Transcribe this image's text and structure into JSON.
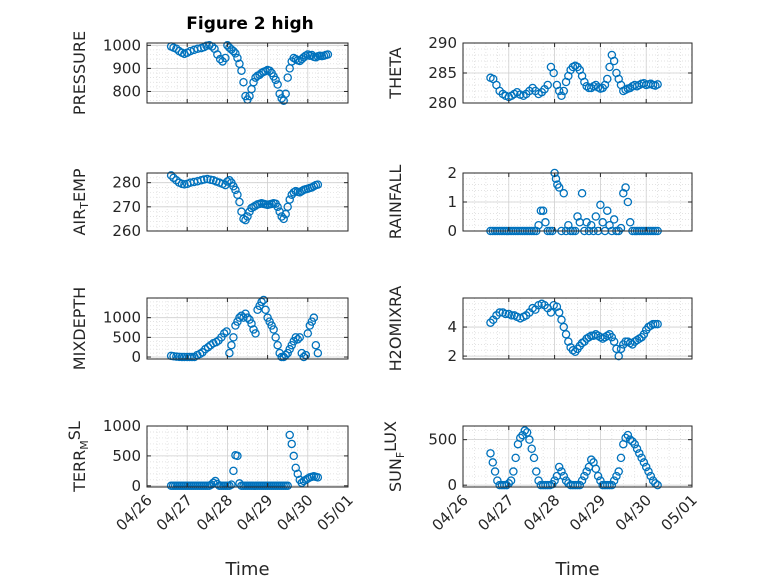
{
  "figure": {
    "title": "Figure 2 high"
  },
  "colors": {
    "marker": "#0072BD",
    "axis": "#262626",
    "grid": "#d9d9d9"
  },
  "x_axis": {
    "label": "Time",
    "ticks": [
      "04/26",
      "04/27",
      "04/28",
      "04/29",
      "04/30",
      "05/01"
    ],
    "xlim": [
      0,
      5
    ],
    "unit": "days since 04/26"
  },
  "chart_data": [
    {
      "type": "scatter",
      "ylabel": "PRESSURE",
      "ylim": [
        750,
        1010
      ],
      "yticks": [
        {
          "v": 1000,
          "t": "1000"
        },
        {
          "v": 900,
          "t": "900"
        },
        {
          "v": 800,
          "t": "800"
        }
      ],
      "title": "Figure 2 high",
      "x": [
        0.6,
        0.66,
        0.73,
        0.8,
        0.87,
        0.93,
        1.0,
        1.08,
        1.17,
        1.26,
        1.35,
        1.42,
        1.48,
        1.55,
        1.62,
        1.68,
        1.75,
        1.82,
        1.88,
        1.95,
        2.0,
        2.05,
        2.1,
        2.15,
        2.2,
        2.25,
        2.3,
        2.35,
        2.4,
        2.45,
        2.5,
        2.55,
        2.6,
        2.65,
        2.7,
        2.75,
        2.8,
        2.85,
        2.9,
        2.95,
        3.0,
        3.05,
        3.1,
        3.15,
        3.2,
        3.25,
        3.3,
        3.35,
        3.4,
        3.45,
        3.5,
        3.55,
        3.6,
        3.65,
        3.7,
        3.75,
        3.8,
        3.85,
        3.9,
        3.95,
        4.0,
        4.05,
        4.1,
        4.15,
        4.2,
        4.25,
        4.3,
        4.35,
        4.4,
        4.45,
        4.5
      ],
      "y": [
        995,
        990,
        985,
        975,
        968,
        963,
        968,
        975,
        980,
        985,
        988,
        992,
        998,
        1000,
        995,
        985,
        960,
        940,
        930,
        945,
        1000,
        990,
        982,
        975,
        965,
        945,
        920,
        890,
        840,
        780,
        765,
        780,
        810,
        840,
        860,
        868,
        872,
        880,
        885,
        888,
        893,
        890,
        880,
        865,
        850,
        830,
        790,
        770,
        760,
        790,
        860,
        900,
        930,
        945,
        940,
        935,
        932,
        940,
        948,
        955,
        960,
        955,
        958,
        950,
        948,
        952,
        955,
        953,
        955,
        958,
        960
      ],
      "ylabel_text": "PRESSURE"
    },
    {
      "type": "scatter",
      "ylabel": "THETA",
      "ylim": [
        280,
        290
      ],
      "yticks": [
        {
          "v": 290,
          "t": "290"
        },
        {
          "v": 285,
          "t": "285"
        },
        {
          "v": 280,
          "t": "280"
        }
      ],
      "x": [
        0.6,
        0.66,
        0.73,
        0.8,
        0.87,
        0.93,
        1.0,
        1.06,
        1.12,
        1.18,
        1.25,
        1.32,
        1.38,
        1.45,
        1.52,
        1.58,
        1.65,
        1.72,
        1.78,
        1.85,
        1.92,
        1.98,
        2.05,
        2.1,
        2.15,
        2.2,
        2.25,
        2.3,
        2.35,
        2.4,
        2.45,
        2.5,
        2.55,
        2.6,
        2.65,
        2.7,
        2.75,
        2.8,
        2.85,
        2.9,
        2.95,
        3.0,
        3.05,
        3.1,
        3.15,
        3.2,
        3.25,
        3.3,
        3.35,
        3.4,
        3.45,
        3.5,
        3.55,
        3.6,
        3.65,
        3.7,
        3.75,
        3.8,
        3.85,
        3.9,
        3.95,
        4.0,
        4.05,
        4.1,
        4.15,
        4.2,
        4.25
      ],
      "y": [
        284.2,
        284,
        283,
        282,
        281.5,
        281.2,
        281,
        281.2,
        281.5,
        281.8,
        281.4,
        281.2,
        281.5,
        282,
        282.5,
        282,
        281.5,
        281.8,
        282.3,
        283,
        286,
        285,
        283,
        282,
        281.2,
        282,
        283.5,
        284.5,
        285.5,
        286,
        286.2,
        286,
        285.5,
        284.5,
        283.5,
        282.8,
        282.5,
        282.5,
        282.8,
        283,
        282.6,
        282.4,
        282.5,
        283,
        284,
        286,
        288,
        287,
        285,
        284,
        283,
        282,
        282.2,
        282.4,
        282.5,
        282.8,
        283,
        282.8,
        283,
        283.2,
        283.3,
        283,
        283.1,
        283.2,
        283,
        282.9,
        283.1
      ],
      "ylabel_text": "THETA"
    },
    {
      "type": "scatter",
      "ylabel": "AIR_TEMP",
      "ylim": [
        260,
        284
      ],
      "yticks": [
        {
          "v": 280,
          "t": "280"
        },
        {
          "v": 270,
          "t": "270"
        },
        {
          "v": 260,
          "t": "260"
        }
      ],
      "x": [
        0.6,
        0.66,
        0.73,
        0.8,
        0.87,
        0.93,
        1.0,
        1.08,
        1.17,
        1.26,
        1.35,
        1.42,
        1.5,
        1.58,
        1.65,
        1.72,
        1.8,
        1.88,
        1.95,
        2.0,
        2.05,
        2.1,
        2.15,
        2.2,
        2.25,
        2.3,
        2.35,
        2.4,
        2.45,
        2.5,
        2.55,
        2.6,
        2.65,
        2.7,
        2.75,
        2.8,
        2.85,
        2.9,
        2.95,
        3.0,
        3.05,
        3.1,
        3.15,
        3.2,
        3.25,
        3.3,
        3.35,
        3.4,
        3.45,
        3.5,
        3.55,
        3.6,
        3.65,
        3.7,
        3.75,
        3.8,
        3.85,
        3.9,
        3.95,
        4.0,
        4.05,
        4.1,
        4.15,
        4.2,
        4.25
      ],
      "y": [
        283,
        282,
        281,
        280,
        279.5,
        279.3,
        279.5,
        280,
        280.3,
        280.6,
        281,
        281.3,
        281.5,
        281.2,
        281,
        280.5,
        280,
        279.5,
        279,
        280.5,
        281,
        280,
        278.5,
        277,
        275,
        272,
        268,
        265,
        264.5,
        266,
        268,
        269.5,
        270,
        270.5,
        271,
        271.2,
        271.5,
        271.2,
        271,
        270.8,
        271,
        271.2,
        271.5,
        271.3,
        270,
        268,
        266,
        265,
        267,
        270,
        273,
        275,
        276,
        276.5,
        276.2,
        276,
        276.5,
        277,
        277.3,
        277.5,
        277.8,
        278,
        278.5,
        279,
        279.2
      ],
      "ylabel_text": "AIR_TEMP"
    },
    {
      "type": "scatter",
      "ylabel": "RAINFALL",
      "ylim": [
        0,
        2
      ],
      "yticks": [
        {
          "v": 2,
          "t": "2"
        },
        {
          "v": 1,
          "t": "1"
        },
        {
          "v": 0,
          "t": "0"
        }
      ],
      "x": [
        0.6,
        0.65,
        0.7,
        0.75,
        0.8,
        0.85,
        0.9,
        0.95,
        1.0,
        1.05,
        1.1,
        1.15,
        1.2,
        1.25,
        1.3,
        1.35,
        1.4,
        1.45,
        1.5,
        1.55,
        1.6,
        1.65,
        1.7,
        1.75,
        1.8,
        1.85,
        1.9,
        1.95,
        2.0,
        2.03,
        2.06,
        2.1,
        2.15,
        2.2,
        2.25,
        2.3,
        2.35,
        2.4,
        2.45,
        2.5,
        2.55,
        2.6,
        2.65,
        2.7,
        2.75,
        2.8,
        2.85,
        2.9,
        2.95,
        3.0,
        3.05,
        3.1,
        3.15,
        3.2,
        3.25,
        3.3,
        3.35,
        3.4,
        3.45,
        3.5,
        3.55,
        3.6,
        3.65,
        3.7,
        3.75,
        3.8,
        3.85,
        3.9,
        3.95,
        4.0,
        4.05,
        4.1,
        4.15,
        4.2,
        4.25
      ],
      "y": [
        0,
        0,
        0,
        0,
        0,
        0,
        0,
        0,
        0,
        0,
        0,
        0,
        0,
        0,
        0,
        0,
        0,
        0,
        0,
        0,
        0,
        0.2,
        0.7,
        0.7,
        0.3,
        0,
        0,
        0,
        2.0,
        1.8,
        1.6,
        1.5,
        0,
        1.3,
        0,
        0.2,
        0,
        0,
        0,
        0.5,
        0.3,
        1.3,
        0,
        0.3,
        0,
        0.2,
        0,
        0.5,
        0,
        0.9,
        0.3,
        0,
        0.7,
        0.2,
        0,
        0.4,
        0,
        0,
        0.1,
        1.3,
        1.5,
        1.0,
        0.3,
        0,
        0,
        0,
        0,
        0,
        0,
        0,
        0,
        0,
        0,
        0,
        0
      ],
      "ylabel_text": "RAINFALL"
    },
    {
      "type": "scatter",
      "ylabel": "MIXDEPTH",
      "ylim": [
        -50,
        1500
      ],
      "yticks": [
        {
          "v": 1000,
          "t": "1000"
        },
        {
          "v": 500,
          "t": "500"
        },
        {
          "v": 0,
          "t": "0"
        }
      ],
      "x": [
        0.6,
        0.66,
        0.73,
        0.8,
        0.87,
        0.93,
        1.0,
        1.06,
        1.12,
        1.18,
        1.25,
        1.32,
        1.38,
        1.45,
        1.52,
        1.58,
        1.65,
        1.72,
        1.78,
        1.85,
        1.92,
        1.98,
        2.05,
        2.1,
        2.15,
        2.2,
        2.25,
        2.3,
        2.35,
        2.4,
        2.45,
        2.5,
        2.55,
        2.6,
        2.65,
        2.7,
        2.75,
        2.8,
        2.85,
        2.9,
        2.95,
        3.0,
        3.05,
        3.1,
        3.15,
        3.2,
        3.25,
        3.3,
        3.35,
        3.4,
        3.45,
        3.5,
        3.55,
        3.6,
        3.65,
        3.7,
        3.75,
        3.8,
        3.85,
        3.9,
        3.95,
        4.0,
        4.05,
        4.1,
        4.15,
        4.2,
        4.25
      ],
      "y": [
        30,
        20,
        10,
        5,
        0,
        0,
        0,
        0,
        0,
        0,
        50,
        80,
        120,
        200,
        250,
        300,
        350,
        380,
        420,
        500,
        600,
        650,
        100,
        300,
        500,
        800,
        900,
        1000,
        1050,
        1000,
        1100,
        1000,
        950,
        850,
        700,
        600,
        1200,
        1300,
        1400,
        1450,
        1200,
        1000,
        900,
        800,
        700,
        500,
        300,
        100,
        0,
        0,
        50,
        100,
        200,
        300,
        400,
        500,
        450,
        500,
        100,
        0,
        50,
        600,
        800,
        900,
        1000,
        300,
        100
      ],
      "ylabel_text": "MIXDEPTH"
    },
    {
      "type": "scatter",
      "ylabel": "H2OMIXRA",
      "ylim": [
        1.8,
        6
      ],
      "yticks": [
        {
          "v": 4,
          "t": "4"
        },
        {
          "v": 2,
          "t": "2"
        }
      ],
      "x": [
        0.6,
        0.66,
        0.73,
        0.8,
        0.87,
        0.93,
        1.0,
        1.06,
        1.12,
        1.18,
        1.25,
        1.32,
        1.38,
        1.45,
        1.52,
        1.58,
        1.65,
        1.72,
        1.78,
        1.85,
        1.92,
        1.98,
        2.05,
        2.1,
        2.15,
        2.2,
        2.25,
        2.3,
        2.35,
        2.4,
        2.45,
        2.5,
        2.55,
        2.6,
        2.65,
        2.7,
        2.75,
        2.8,
        2.85,
        2.9,
        2.95,
        3.0,
        3.05,
        3.1,
        3.15,
        3.2,
        3.25,
        3.3,
        3.35,
        3.4,
        3.45,
        3.5,
        3.55,
        3.6,
        3.65,
        3.7,
        3.75,
        3.8,
        3.85,
        3.9,
        3.95,
        4.0,
        4.05,
        4.1,
        4.15,
        4.2,
        4.25
      ],
      "y": [
        4.3,
        4.5,
        4.8,
        5.0,
        5.0,
        4.9,
        4.9,
        4.8,
        4.8,
        4.7,
        4.6,
        4.7,
        4.8,
        5.0,
        5.3,
        5.2,
        5.5,
        5.6,
        5.5,
        5.3,
        5.0,
        5.5,
        5.4,
        5.0,
        4.5,
        4.0,
        3.5,
        3.0,
        2.6,
        2.4,
        2.3,
        2.5,
        2.7,
        2.9,
        3.0,
        3.2,
        3.3,
        3.4,
        3.4,
        3.5,
        3.4,
        3.3,
        3.2,
        3.3,
        3.4,
        3.5,
        3.3,
        3.0,
        2.5,
        2.0,
        2.5,
        2.8,
        3.0,
        3.0,
        2.9,
        2.8,
        3.0,
        3.1,
        3.2,
        3.3,
        3.5,
        3.8,
        4.0,
        4.1,
        4.2,
        4.2,
        4.2
      ],
      "ylabel_text": "H2OMIXRA"
    },
    {
      "type": "scatter",
      "ylabel": "TERR_MSL",
      "ylim": [
        -20,
        1000
      ],
      "yticks": [
        {
          "v": 1000,
          "t": "1000"
        },
        {
          "v": 500,
          "t": "500"
        },
        {
          "v": 0,
          "t": "0"
        }
      ],
      "x": [
        0.6,
        0.65,
        0.7,
        0.75,
        0.8,
        0.85,
        0.9,
        0.95,
        1.0,
        1.05,
        1.1,
        1.15,
        1.2,
        1.25,
        1.3,
        1.35,
        1.4,
        1.45,
        1.5,
        1.55,
        1.6,
        1.65,
        1.7,
        1.75,
        1.8,
        1.85,
        1.9,
        1.95,
        2.0,
        2.05,
        2.1,
        2.15,
        2.2,
        2.25,
        2.3,
        2.35,
        2.4,
        2.45,
        2.5,
        2.55,
        2.6,
        2.65,
        2.7,
        2.75,
        2.8,
        2.85,
        2.9,
        2.95,
        3.0,
        3.05,
        3.1,
        3.15,
        3.2,
        3.25,
        3.3,
        3.35,
        3.4,
        3.45,
        3.5,
        3.55,
        3.6,
        3.65,
        3.7,
        3.75,
        3.8,
        3.85,
        3.9,
        3.95,
        4.0,
        4.05,
        4.1,
        4.15,
        4.2,
        4.25
      ],
      "y": [
        0,
        0,
        0,
        0,
        0,
        0,
        0,
        0,
        0,
        0,
        0,
        0,
        0,
        0,
        0,
        0,
        0,
        0,
        0,
        0,
        20,
        50,
        80,
        30,
        0,
        0,
        0,
        0,
        0,
        0,
        20,
        250,
        510,
        500,
        40,
        0,
        0,
        0,
        0,
        0,
        0,
        0,
        0,
        0,
        0,
        0,
        0,
        0,
        0,
        0,
        0,
        0,
        0,
        0,
        0,
        0,
        0,
        0,
        0,
        850,
        700,
        500,
        300,
        200,
        100,
        50,
        80,
        100,
        120,
        140,
        150,
        160,
        150,
        140
      ],
      "ylabel_text": "TERR_MSL"
    },
    {
      "type": "scatter",
      "ylabel": "SUN_FLUX",
      "ylim": [
        -20,
        650
      ],
      "yticks": [
        {
          "v": 500,
          "t": "500"
        },
        {
          "v": 0,
          "t": "0"
        }
      ],
      "x": [
        0.6,
        0.65,
        0.7,
        0.75,
        0.8,
        0.85,
        0.9,
        0.95,
        1.0,
        1.05,
        1.1,
        1.15,
        1.2,
        1.25,
        1.3,
        1.35,
        1.4,
        1.45,
        1.5,
        1.55,
        1.6,
        1.65,
        1.7,
        1.75,
        1.8,
        1.85,
        1.9,
        1.95,
        2.0,
        2.05,
        2.1,
        2.15,
        2.2,
        2.25,
        2.3,
        2.35,
        2.4,
        2.45,
        2.5,
        2.55,
        2.6,
        2.65,
        2.7,
        2.75,
        2.8,
        2.85,
        2.9,
        2.95,
        3.0,
        3.05,
        3.1,
        3.15,
        3.2,
        3.25,
        3.3,
        3.35,
        3.4,
        3.45,
        3.5,
        3.55,
        3.6,
        3.65,
        3.7,
        3.75,
        3.8,
        3.85,
        3.9,
        3.95,
        4.0,
        4.05,
        4.1,
        4.15,
        4.2,
        4.25
      ],
      "y": [
        350,
        250,
        150,
        50,
        0,
        0,
        0,
        0,
        20,
        50,
        150,
        300,
        450,
        520,
        550,
        600,
        580,
        500,
        400,
        300,
        150,
        50,
        0,
        0,
        0,
        0,
        0,
        10,
        50,
        100,
        200,
        150,
        100,
        50,
        20,
        0,
        0,
        0,
        0,
        0,
        50,
        100,
        150,
        200,
        280,
        250,
        180,
        100,
        50,
        0,
        0,
        0,
        0,
        0,
        50,
        100,
        150,
        300,
        450,
        520,
        550,
        500,
        480,
        450,
        400,
        350,
        300,
        250,
        200,
        150,
        100,
        50,
        20,
        0
      ],
      "ylabel_text": "SUN_FLUX"
    }
  ]
}
